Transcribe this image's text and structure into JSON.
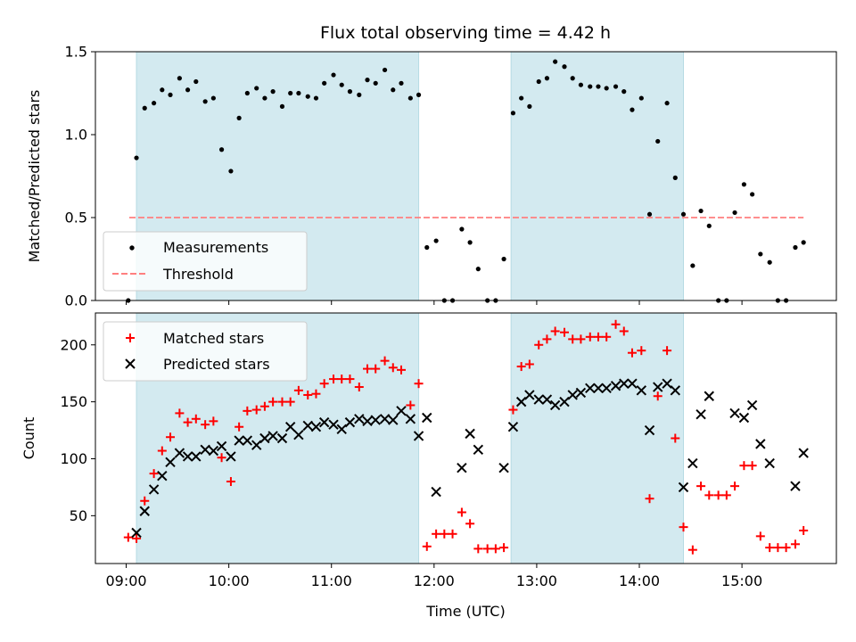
{
  "chart_data": {
    "type": "scatter",
    "title": "Flux total observing time = 4.42 h",
    "xlabel": "Time (UTC)",
    "x_ticks": [
      "09:00",
      "10:00",
      "11:00",
      "12:00",
      "13:00",
      "14:00",
      "15:00"
    ],
    "x_tick_hours": [
      9,
      10,
      11,
      12,
      13,
      14,
      15
    ],
    "xlim": [
      8.7,
      15.92
    ],
    "shaded_intervals": [
      [
        9.1,
        11.85
      ],
      [
        12.75,
        14.43
      ]
    ],
    "shade_color": "#d3eaf0",
    "panels": [
      {
        "ylabel": "Matched/Predicted stars",
        "ylim": [
          0,
          1.5
        ],
        "yticks": [
          0.0,
          0.5,
          1.0,
          1.5
        ],
        "ytick_labels": [
          "0.0",
          "0.5",
          "1.0",
          "1.5"
        ],
        "legend_position": "lower-left",
        "threshold": {
          "name": "Threshold",
          "value": 0.5,
          "x_range": [
            9.03,
            15.6
          ],
          "color": "#ff7f7f"
        },
        "series": [
          {
            "name": "Measurements",
            "marker": "dot",
            "color": "#000000",
            "x": [
              9.02,
              9.1,
              9.18,
              9.27,
              9.35,
              9.43,
              9.52,
              9.6,
              9.68,
              9.77,
              9.85,
              9.93,
              10.02,
              10.1,
              10.18,
              10.27,
              10.35,
              10.43,
              10.52,
              10.6,
              10.68,
              10.77,
              10.85,
              10.93,
              11.02,
              11.1,
              11.18,
              11.27,
              11.35,
              11.43,
              11.52,
              11.6,
              11.68,
              11.77,
              11.85,
              11.93,
              12.02,
              12.1,
              12.18,
              12.27,
              12.35,
              12.43,
              12.52,
              12.6,
              12.68,
              12.77,
              12.85,
              12.93,
              13.02,
              13.1,
              13.18,
              13.27,
              13.35,
              13.43,
              13.52,
              13.6,
              13.68,
              13.77,
              13.85,
              13.93,
              14.02,
              14.1,
              14.18,
              14.27,
              14.35,
              14.43,
              14.52,
              14.6,
              14.68,
              14.77,
              14.85,
              14.93,
              15.02,
              15.1,
              15.18,
              15.27,
              15.35,
              15.43,
              15.52,
              15.6
            ],
            "y": [
              0.0,
              0.86,
              1.16,
              1.19,
              1.27,
              1.24,
              1.34,
              1.27,
              1.32,
              1.2,
              1.22,
              0.91,
              0.78,
              1.1,
              1.25,
              1.28,
              1.22,
              1.26,
              1.17,
              1.25,
              1.25,
              1.23,
              1.22,
              1.31,
              1.36,
              1.3,
              1.26,
              1.24,
              1.33,
              1.31,
              1.39,
              1.27,
              1.31,
              1.22,
              1.24,
              0.32,
              0.36,
              0.0,
              0.0,
              0.43,
              0.35,
              0.19,
              0.0,
              0.0,
              0.25,
              1.13,
              1.22,
              1.17,
              1.32,
              1.34,
              1.44,
              1.41,
              1.34,
              1.3,
              1.29,
              1.29,
              1.28,
              1.29,
              1.26,
              1.15,
              1.22,
              0.52,
              0.96,
              1.19,
              0.74,
              0.52,
              0.21,
              0.54,
              0.45,
              0.0,
              0.0,
              0.53,
              0.7,
              0.64,
              0.28,
              0.23,
              0.0,
              0.0,
              0.32,
              0.35
            ]
          }
        ]
      },
      {
        "ylabel": "Count",
        "ylim": [
          8,
          228
        ],
        "yticks": [
          50,
          100,
          150,
          200
        ],
        "ytick_labels": [
          "50",
          "100",
          "150",
          "200"
        ],
        "legend_position": "upper-left",
        "series": [
          {
            "name": "Matched stars",
            "marker": "plus",
            "color": "#ff0000",
            "x": [
              9.02,
              9.1,
              9.18,
              9.27,
              9.35,
              9.43,
              9.52,
              9.6,
              9.68,
              9.77,
              9.85,
              9.93,
              10.02,
              10.1,
              10.18,
              10.27,
              10.35,
              10.43,
              10.52,
              10.6,
              10.68,
              10.77,
              10.85,
              10.93,
              11.02,
              11.1,
              11.18,
              11.27,
              11.35,
              11.43,
              11.52,
              11.6,
              11.68,
              11.77,
              11.85,
              11.93,
              12.02,
              12.1,
              12.18,
              12.27,
              12.35,
              12.43,
              12.52,
              12.6,
              12.68,
              12.77,
              12.85,
              12.93,
              13.02,
              13.1,
              13.18,
              13.27,
              13.35,
              13.43,
              13.52,
              13.6,
              13.68,
              13.77,
              13.85,
              13.93,
              14.02,
              14.1,
              14.18,
              14.27,
              14.35,
              14.43,
              14.52,
              14.6,
              14.68,
              14.77,
              14.85,
              14.93,
              15.02,
              15.1,
              15.18,
              15.27,
              15.35,
              15.43,
              15.52,
              15.6
            ],
            "y": [
              31,
              30,
              63,
              87,
              107,
              119,
              140,
              132,
              135,
              130,
              133,
              101,
              80,
              128,
              142,
              143,
              146,
              150,
              150,
              150,
              160,
              156,
              157,
              166,
              170,
              170,
              170,
              163,
              179,
              179,
              186,
              180,
              178,
              147,
              166,
              23,
              34,
              34,
              34,
              53,
              43,
              21,
              21,
              21,
              22,
              143,
              181,
              183,
              200,
              205,
              212,
              211,
              205,
              205,
              207,
              207,
              207,
              218,
              212,
              193,
              195,
              65,
              155,
              195,
              118,
              40,
              20,
              76,
              68,
              68,
              68,
              76,
              94,
              94,
              32,
              22,
              22,
              22,
              25,
              37
            ]
          },
          {
            "name": "Predicted stars",
            "marker": "x",
            "color": "#000000",
            "x": [
              9.1,
              9.18,
              9.27,
              9.35,
              9.43,
              9.52,
              9.6,
              9.68,
              9.77,
              9.85,
              9.93,
              10.02,
              10.1,
              10.18,
              10.27,
              10.35,
              10.43,
              10.52,
              10.6,
              10.68,
              10.77,
              10.85,
              10.93,
              11.02,
              11.1,
              11.18,
              11.27,
              11.35,
              11.43,
              11.52,
              11.6,
              11.68,
              11.77,
              11.85,
              11.93,
              12.02,
              12.27,
              12.35,
              12.43,
              12.68,
              12.77,
              12.85,
              12.93,
              13.02,
              13.1,
              13.18,
              13.27,
              13.35,
              13.43,
              13.52,
              13.6,
              13.68,
              13.77,
              13.85,
              13.93,
              14.02,
              14.1,
              14.18,
              14.27,
              14.35,
              14.43,
              14.52,
              14.6,
              14.68,
              14.93,
              15.02,
              15.1,
              15.18,
              15.27,
              15.52,
              15.6
            ],
            "y": [
              35,
              54,
              73,
              85,
              97,
              105,
              102,
              102,
              108,
              107,
              111,
              102,
              116,
              116,
              112,
              118,
              120,
              118,
              128,
              121,
              129,
              128,
              132,
              130,
              126,
              132,
              135,
              133,
              134,
              135,
              134,
              142,
              135,
              120,
              136,
              71,
              92,
              122,
              108,
              92,
              128,
              150,
              156,
              152,
              152,
              147,
              150,
              156,
              158,
              162,
              162,
              162,
              164,
              166,
              166,
              160,
              125,
              163,
              166,
              160,
              75,
              96,
              139,
              155,
              140,
              136,
              147,
              113,
              96,
              76,
              105
            ]
          }
        ]
      }
    ]
  }
}
